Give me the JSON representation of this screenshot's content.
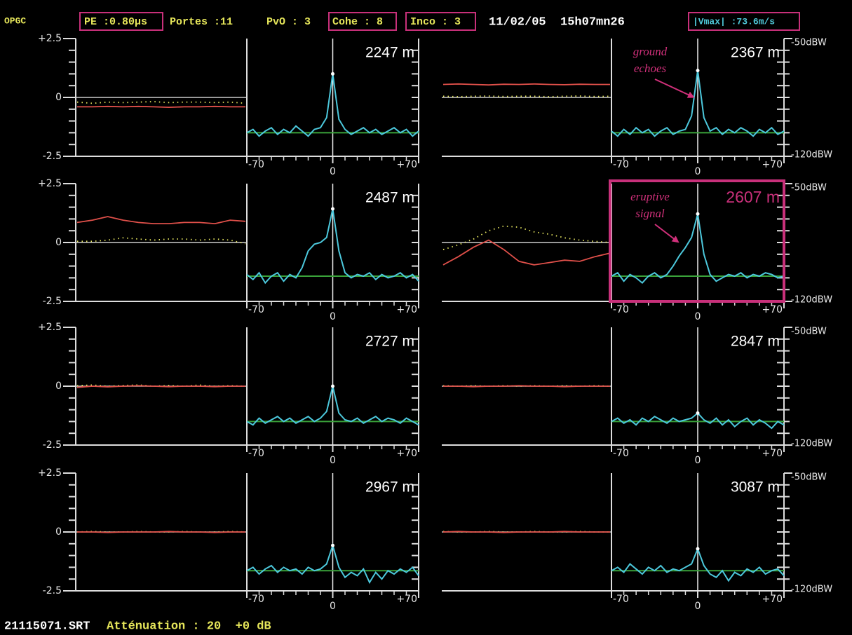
{
  "header": {
    "lab": "OPGC",
    "pe": "PE :0.80µs",
    "portes": "Portes :11",
    "pvo": "PvO : 3",
    "cohe": "Cohe : 8",
    "inco": "Inco : 3",
    "datetime": "11/02/05  15h07mn26",
    "vmax": "|Vmax| :73.6m/s"
  },
  "time_axis": {
    "ylim": [
      -2.5,
      2.5
    ],
    "yticks": [
      {
        "value": 2.5,
        "label": "+2.5"
      },
      0,
      -2.5
    ]
  },
  "spectrum_axis": {
    "ylim": [
      -120,
      -50
    ],
    "yticks": [
      {
        "value": -50,
        "label": "-50dBW"
      },
      {
        "value": -120,
        "label": "-120dBW"
      }
    ],
    "xlim": [
      -70,
      70
    ],
    "xticks": [
      -70,
      0,
      {
        "value": 70,
        "label": "+70"
      }
    ],
    "x": [
      -70,
      -65,
      -60,
      -55,
      -50,
      -45,
      -40,
      -35,
      -30,
      -25,
      -20,
      -15,
      -10,
      -5,
      0,
      5,
      10,
      15,
      20,
      25,
      30,
      35,
      40,
      45,
      50,
      55,
      60,
      65,
      70
    ]
  },
  "panels": [
    {
      "range": "2247 m",
      "red": [
        -0.4,
        -0.4,
        -0.38,
        -0.4,
        -0.38,
        -0.4,
        -0.42,
        -0.4,
        -0.4,
        -0.38,
        -0.4,
        -0.4
      ],
      "yellow": [
        -0.2,
        -0.25,
        -0.2,
        -0.22,
        -0.2,
        -0.18,
        -0.22,
        -0.2,
        -0.2,
        -0.22,
        -0.2,
        -0.25
      ],
      "noise": -106,
      "spectrum": [
        -106,
        -104,
        -108,
        -105,
        -103,
        -107,
        -104,
        -106,
        -102,
        -105,
        -108,
        -104,
        -103,
        -97,
        -71,
        -98,
        -104,
        -107,
        -105,
        -103,
        -106,
        -104,
        -107,
        -105,
        -103,
        -106,
        -104,
        -108,
        -105
      ]
    },
    {
      "range": "2367 m",
      "red": [
        0.55,
        0.57,
        0.55,
        0.53,
        0.56,
        0.55,
        0.57,
        0.55,
        0.54,
        0.56,
        0.55,
        0.55
      ],
      "yellow": [
        0.05,
        0.03,
        0.05,
        0.06,
        0.04,
        0.05,
        0.05,
        0.03,
        0.05,
        0.06,
        0.04,
        0.05
      ],
      "noise": -106,
      "annotation": [
        "ground",
        "echoes"
      ],
      "spectrum": [
        -105,
        -108,
        -104,
        -107,
        -103,
        -106,
        -104,
        -108,
        -105,
        -103,
        -107,
        -105,
        -104,
        -96,
        -69,
        -97,
        -105,
        -103,
        -107,
        -104,
        -106,
        -103,
        -105,
        -108,
        -104,
        -106,
        -103,
        -107,
        -105
      ]
    },
    {
      "range": "2487 m",
      "red": [
        0.85,
        0.95,
        1.1,
        0.95,
        0.85,
        0.8,
        0.8,
        0.85,
        0.85,
        0.8,
        0.95,
        0.9
      ],
      "yellow": [
        0.05,
        0.05,
        0.1,
        0.2,
        0.15,
        0.1,
        0.15,
        0.15,
        0.1,
        0.15,
        0.1,
        -0.05
      ],
      "noise": -105,
      "spectrum": [
        -104,
        -107,
        -103,
        -109,
        -105,
        -103,
        -108,
        -104,
        -106,
        -100,
        -90,
        -86,
        -85,
        -82,
        -65,
        -90,
        -103,
        -106,
        -104,
        -105,
        -103,
        -107,
        -104,
        -106,
        -105,
        -103,
        -106,
        -104,
        -108
      ]
    },
    {
      "range": "2607 m",
      "red": [
        -0.95,
        -0.6,
        -0.2,
        0.1,
        -0.3,
        -0.8,
        -0.95,
        -0.85,
        -0.75,
        -0.8,
        -0.6,
        -0.45
      ],
      "yellow": [
        -0.3,
        -0.1,
        0.15,
        0.5,
        0.7,
        0.65,
        0.45,
        0.35,
        0.2,
        0.1,
        0.05,
        0.0
      ],
      "noise": -105,
      "highlight": true,
      "annotation": [
        "eruptive",
        "signal"
      ],
      "spectrum": [
        -105,
        -103,
        -108,
        -104,
        -106,
        -109,
        -105,
        -103,
        -106,
        -104,
        -99,
        -93,
        -88,
        -82,
        -68,
        -92,
        -104,
        -108,
        -106,
        -104,
        -105,
        -103,
        -106,
        -104,
        -105,
        -103,
        -104,
        -106,
        -105
      ]
    },
    {
      "range": "2727 m",
      "red": [
        -0.05,
        0.0,
        -0.03,
        0.0,
        0.02,
        0.0,
        -0.02,
        0.0,
        0.0,
        -0.02,
        0.0,
        0.0
      ],
      "yellow": [
        0.02,
        0.05,
        0.0,
        0.03,
        0.05,
        0.0,
        0.03,
        0.0,
        0.05,
        0.0,
        0.02,
        0.0
      ],
      "noise": -106,
      "spectrum": [
        -106,
        -108,
        -104,
        -107,
        -105,
        -103,
        -106,
        -104,
        -107,
        -105,
        -103,
        -106,
        -104,
        -100,
        -85,
        -101,
        -105,
        -106,
        -104,
        -107,
        -105,
        -103,
        -106,
        -104,
        -105,
        -107,
        -104,
        -106,
        -108
      ]
    },
    {
      "range": "2847 m",
      "red": [
        0.0,
        0.0,
        -0.02,
        0.0,
        0.0,
        0.02,
        0.0,
        0.0,
        -0.02,
        0.0,
        0.0,
        0.0
      ],
      "yellow": [
        0.02,
        0.0,
        0.02,
        0.0,
        0.02,
        0.0,
        0.02,
        0.0,
        0.02,
        0.0,
        0.02,
        0.0
      ],
      "noise": -106,
      "spectrum": [
        -106,
        -104,
        -107,
        -105,
        -108,
        -104,
        -106,
        -103,
        -105,
        -107,
        -104,
        -106,
        -105,
        -104,
        -101,
        -105,
        -107,
        -104,
        -108,
        -105,
        -109,
        -106,
        -104,
        -108,
        -105,
        -107,
        -110,
        -106,
        -108
      ]
    },
    {
      "range": "2967 m",
      "red": [
        0.0,
        0.0,
        -0.02,
        0.0,
        0.0,
        0.0,
        0.02,
        0.0,
        0.0,
        -0.02,
        0.0,
        0.0
      ],
      "yellow": [
        0.0,
        0.02,
        0.0,
        0.0,
        0.02,
        0.0,
        0.0,
        0.02,
        0.0,
        0.0,
        0.02,
        0.0
      ],
      "noise": -108,
      "spectrum": [
        -108,
        -106,
        -110,
        -107,
        -105,
        -109,
        -106,
        -108,
        -107,
        -110,
        -106,
        -108,
        -107,
        -104,
        -93,
        -106,
        -112,
        -109,
        -111,
        -107,
        -115,
        -109,
        -113,
        -108,
        -110,
        -107,
        -109,
        -106,
        -111
      ]
    },
    {
      "range": "3087 m",
      "red": [
        0.0,
        0.02,
        0.0,
        0.0,
        -0.02,
        0.0,
        0.0,
        0.0,
        0.02,
        0.0,
        0.0,
        0.0
      ],
      "yellow": [
        0.02,
        0.0,
        0.0,
        0.02,
        0.0,
        0.0,
        0.02,
        0.0,
        0.0,
        0.02,
        0.0,
        0.0
      ],
      "noise": -108,
      "spectrum": [
        -108,
        -106,
        -109,
        -104,
        -107,
        -110,
        -106,
        -108,
        -105,
        -109,
        -107,
        -108,
        -106,
        -104,
        -95,
        -105,
        -110,
        -112,
        -108,
        -114,
        -109,
        -111,
        -107,
        -109,
        -106,
        -110,
        -108,
        -107,
        -111
      ]
    }
  ],
  "footer": {
    "file": "21115071.SRT",
    "attenuation": "Atténuation : 20  +0 dB"
  }
}
